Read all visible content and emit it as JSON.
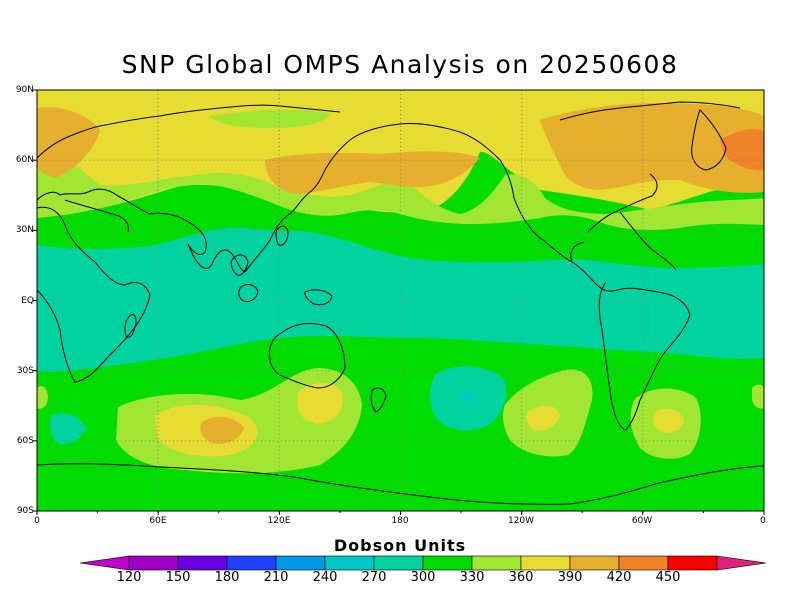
{
  "title": "SNP Global OMPS Analysis on 20250608",
  "lat_labels": [
    "90N",
    "60N",
    "30N",
    "EQ",
    "30S",
    "60S",
    "90S"
  ],
  "lon_labels": [
    "0",
    "60E",
    "120E",
    "180",
    "120W",
    "60W",
    "0"
  ],
  "colorbar": {
    "title": "Dobson Units",
    "labels": [
      "120",
      "150",
      "180",
      "210",
      "240",
      "270",
      "300",
      "330",
      "360",
      "390",
      "420",
      "450"
    ],
    "colors": [
      "#9f00c8",
      "#6a00e0",
      "#2040ff",
      "#0098e6",
      "#00c8c8",
      "#00d2a0",
      "#00dc00",
      "#a0e632",
      "#e6dc32",
      "#e6af2d",
      "#f08228",
      "#fa0000"
    ],
    "under_color": "#c000d0",
    "over_color": "#e0207a"
  },
  "map_colors": {
    "ocean_default": "#00dc00",
    "tropics": "#00d2a0",
    "c330": "#a0e632",
    "c360": "#e6dc32",
    "c390": "#e6af2d",
    "c420": "#f08228",
    "c240": "#00c8c8",
    "coast": "#000000",
    "grid": "#888888"
  }
}
